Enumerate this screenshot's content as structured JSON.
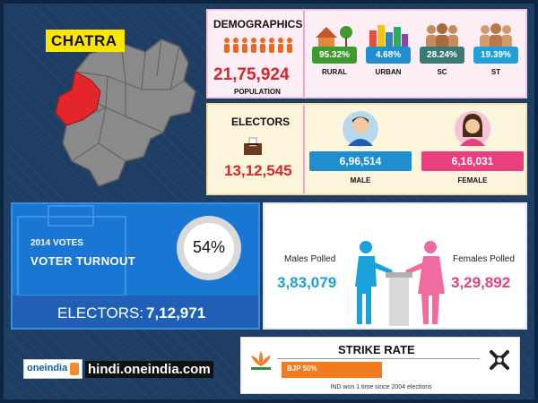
{
  "district": {
    "name": "CHATRA"
  },
  "demographics": {
    "title": "DEMOGRAPHICS",
    "population_value": "21,75,924",
    "population_label": "POPULATION",
    "stats": [
      {
        "value": "95.32%",
        "label": "RURAL",
        "color": "#3f9a2f"
      },
      {
        "value": "4.68%",
        "label": "URBAN",
        "color": "#1f8fd0"
      },
      {
        "value": "28.24%",
        "label": "SC",
        "color": "#3b7a74"
      },
      {
        "value": "19.39%",
        "label": "ST",
        "color": "#1fa0d9"
      }
    ]
  },
  "electors": {
    "title": "ELECTORS",
    "value": "13,12,545",
    "male": {
      "value": "6,96,514",
      "label": "MALE",
      "color": "#1f8fd0"
    },
    "female": {
      "value": "6,16,031",
      "label": "FEMALE",
      "color": "#e8407f"
    }
  },
  "turnout": {
    "year_label": "2014 VOTES",
    "label": "VOTER TURNOUT",
    "percent": "54%",
    "percent_value": 54,
    "electors_label": "ELECTORS:",
    "electors_value": "7,12,971"
  },
  "polled": {
    "males_label": "Males Polled",
    "males_value": "3,83,079",
    "females_label": "Females Polled",
    "females_value": "3,29,892"
  },
  "footer": {
    "logo_text": "oneindia",
    "site": "hindi.oneindia.com"
  },
  "strike_rate": {
    "title": "STRIKE RATE",
    "bjp_label": "BJP 50%",
    "bjp_value": 50,
    "note": "IND won 1 time since 2004 elections"
  },
  "colors": {
    "rural": "#3f9a2f",
    "male": "#1f8fd0",
    "female": "#e8407f",
    "highlight": "#d7262c",
    "bjp": "#f27b20",
    "tag": "#ffe600"
  }
}
